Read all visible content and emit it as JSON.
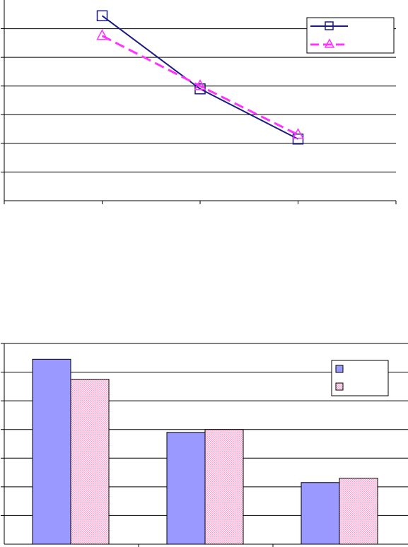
{
  "chart_data": [
    {
      "type": "line",
      "title": "",
      "xlabel": "",
      "ylabel": "",
      "categories": [
        "",
        "",
        ""
      ],
      "ylim": [
        0,
        7
      ],
      "grid": true,
      "legend": "top-right",
      "series": [
        {
          "marker": "square",
          "line": "solid",
          "color": "#1a1a80",
          "values": [
            6.45,
            3.9,
            2.15
          ]
        },
        {
          "marker": "triangle",
          "line": "dashed",
          "color": "#ff33ff",
          "values": [
            5.75,
            4.0,
            2.3
          ]
        }
      ]
    },
    {
      "type": "bar",
      "title": "",
      "xlabel": "",
      "ylabel": "",
      "categories": [
        "",
        "",
        ""
      ],
      "ylim": [
        0,
        7
      ],
      "grid": true,
      "legend": "top-right",
      "series": [
        {
          "fill": "solid",
          "color": "#9999ff",
          "values": [
            6.45,
            3.9,
            2.15
          ]
        },
        {
          "fill": "checkered",
          "color": "#ff99cc",
          "values": [
            5.75,
            4.0,
            2.3
          ]
        }
      ]
    }
  ]
}
